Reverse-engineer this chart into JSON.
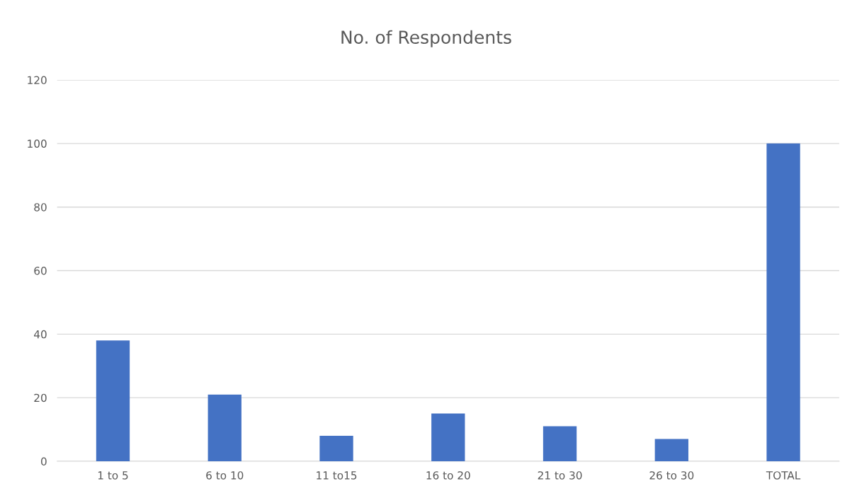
{
  "chart_data": {
    "type": "bar",
    "title": "No. of Respondents",
    "categories": [
      "1 to 5",
      "6 to 10",
      "11 to15",
      "16 to 20",
      "21 to 30",
      "26 to 30",
      "TOTAL"
    ],
    "values": [
      38,
      21,
      8,
      15,
      11,
      7,
      100
    ],
    "color": "#4472c4",
    "ylim": [
      0,
      120
    ],
    "yticks": [
      0,
      20,
      40,
      60,
      80,
      100,
      120
    ],
    "grid": "y",
    "legend": false
  }
}
